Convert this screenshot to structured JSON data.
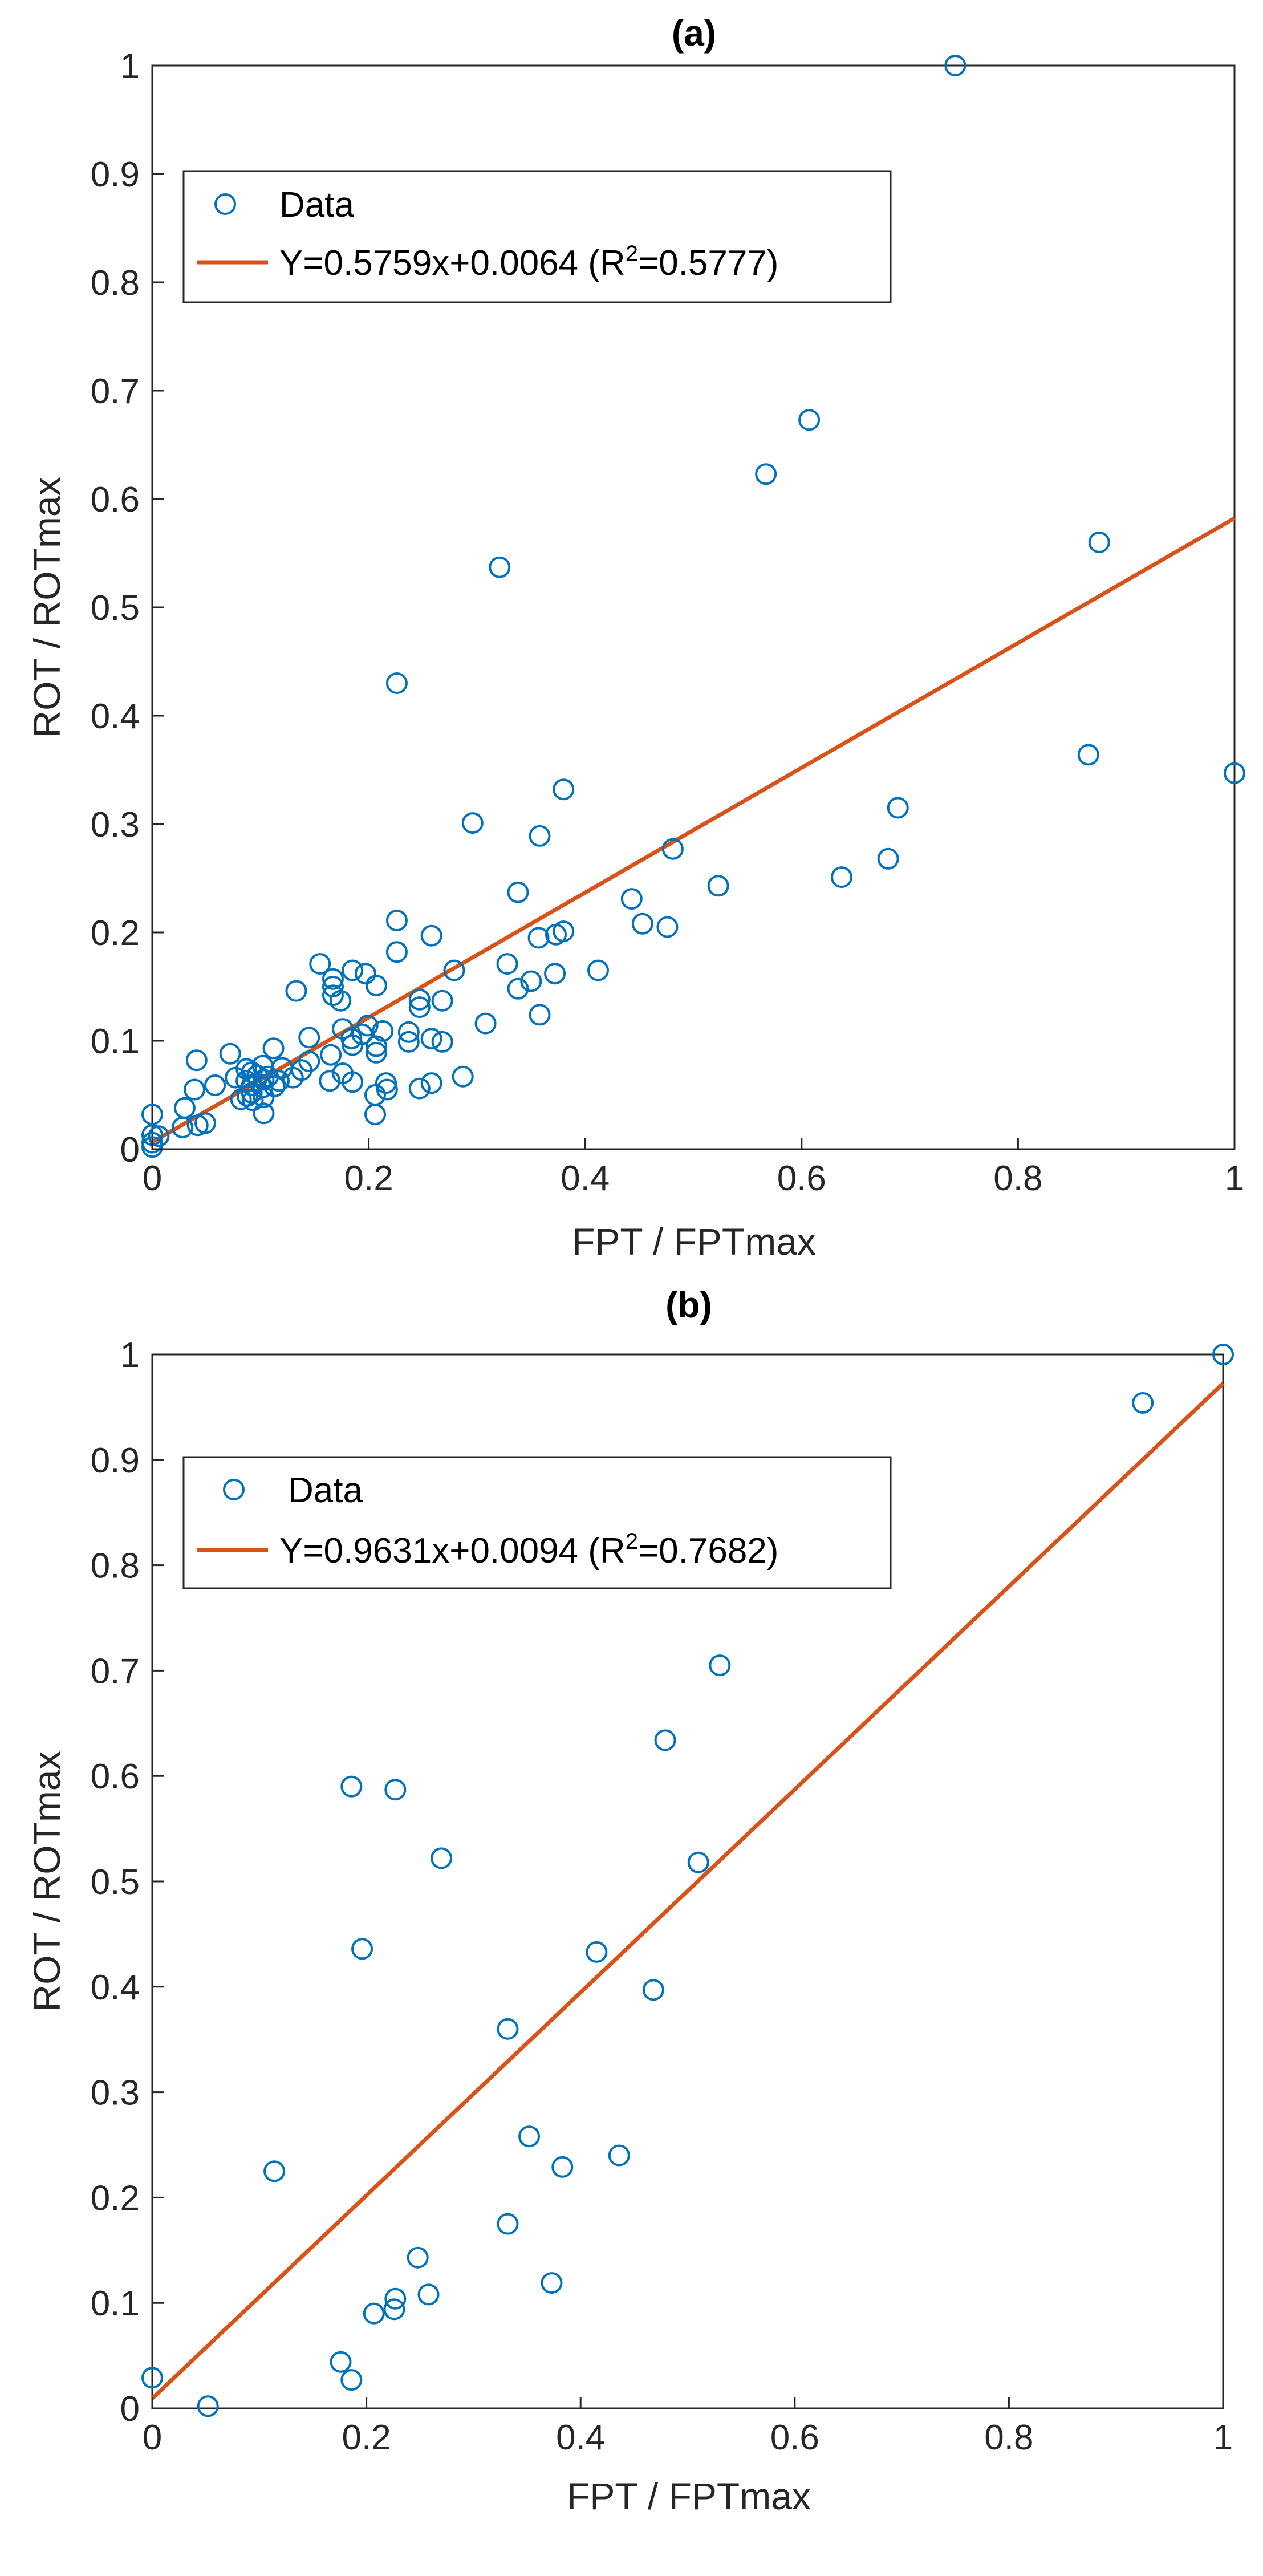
{
  "colors": {
    "marker": "#0072BD",
    "fit_line": "#D95319",
    "axis": "#262626",
    "background": "#FFFFFF"
  },
  "chart_data": [
    {
      "type": "scatter",
      "title": "(a)",
      "xlabel": "FPT / FPTmax",
      "ylabel": "ROT / ROTmax",
      "xlim": [
        0,
        1
      ],
      "ylim": [
        0,
        1
      ],
      "xticks": [
        0,
        0.2,
        0.4,
        0.6,
        0.8,
        1
      ],
      "yticks": [
        0,
        0.1,
        0.2,
        0.3,
        0.4,
        0.5,
        0.6,
        0.7,
        0.8,
        0.9,
        1
      ],
      "xtick_labels": [
        "0",
        "0.2",
        "0.4",
        "0.6",
        "0.8",
        "1"
      ],
      "ytick_labels": [
        "0",
        "0.1",
        "0.2",
        "0.3",
        "0.4",
        "0.5",
        "0.6",
        "0.7",
        "0.8",
        "0.9",
        "1"
      ],
      "grid": false,
      "legend": {
        "location": "top-left",
        "entries": [
          {
            "label": "Data",
            "kind": "marker"
          },
          {
            "label_main": "Y=0.5759x+0.0064 (R",
            "superscript": "2",
            "label_tail": "=0.5777)",
            "kind": "line"
          }
        ]
      },
      "fit": {
        "slope": 0.5759,
        "intercept": 0.0064,
        "r2": 0.5777
      },
      "series": [
        {
          "name": "Data",
          "points": [
            [
              0.742,
              1.0
            ],
            [
              0.607,
              0.673
            ],
            [
              0.567,
              0.623
            ],
            [
              0.875,
              0.56
            ],
            [
              0.321,
              0.537
            ],
            [
              0.226,
              0.43
            ],
            [
              0.865,
              0.364
            ],
            [
              1.0,
              0.347
            ],
            [
              0.38,
              0.332
            ],
            [
              0.689,
              0.315
            ],
            [
              0.296,
              0.301
            ],
            [
              0.358,
              0.289
            ],
            [
              0.481,
              0.277
            ],
            [
              0.68,
              0.268
            ],
            [
              0.637,
              0.251
            ],
            [
              0.523,
              0.243
            ],
            [
              0.338,
              0.237
            ],
            [
              0.443,
              0.231
            ],
            [
              0.226,
              0.211
            ],
            [
              0.453,
              0.208
            ],
            [
              0.476,
              0.205
            ],
            [
              0.38,
              0.201
            ],
            [
              0.373,
              0.198
            ],
            [
              0.258,
              0.197
            ],
            [
              0.357,
              0.195
            ],
            [
              0.226,
              0.182
            ],
            [
              0.155,
              0.171
            ],
            [
              0.328,
              0.171
            ],
            [
              0.412,
              0.165
            ],
            [
              0.279,
              0.165
            ],
            [
              0.185,
              0.165
            ],
            [
              0.197,
              0.162
            ],
            [
              0.372,
              0.162
            ],
            [
              0.167,
              0.157
            ],
            [
              0.35,
              0.155
            ],
            [
              0.207,
              0.151
            ],
            [
              0.167,
              0.15
            ],
            [
              0.338,
              0.148
            ],
            [
              0.133,
              0.146
            ],
            [
              0.167,
              0.142
            ],
            [
              0.174,
              0.137
            ],
            [
              0.268,
              0.137
            ],
            [
              0.247,
              0.138
            ],
            [
              0.247,
              0.131
            ],
            [
              0.358,
              0.124
            ],
            [
              0.308,
              0.116
            ],
            [
              0.199,
              0.114
            ],
            [
              0.176,
              0.111
            ],
            [
              0.213,
              0.109
            ],
            [
              0.237,
              0.108
            ],
            [
              0.194,
              0.106
            ],
            [
              0.184,
              0.102
            ],
            [
              0.145,
              0.103
            ],
            [
              0.258,
              0.102
            ],
            [
              0.237,
              0.099
            ],
            [
              0.268,
              0.099
            ],
            [
              0.185,
              0.096
            ],
            [
              0.207,
              0.095
            ],
            [
              0.112,
              0.093
            ],
            [
              0.207,
              0.089
            ],
            [
              0.072,
              0.088
            ],
            [
              0.165,
              0.087
            ],
            [
              0.041,
              0.082
            ],
            [
              0.145,
              0.081
            ],
            [
              0.102,
              0.077
            ],
            [
              0.12,
              0.075
            ],
            [
              0.087,
              0.074
            ],
            [
              0.138,
              0.073
            ],
            [
              0.092,
              0.071
            ],
            [
              0.176,
              0.07
            ],
            [
              0.097,
              0.068
            ],
            [
              0.107,
              0.067
            ],
            [
              0.287,
              0.067
            ],
            [
              0.077,
              0.066
            ],
            [
              0.13,
              0.066
            ],
            [
              0.103,
              0.064
            ],
            [
              0.117,
              0.063
            ],
            [
              0.087,
              0.063
            ],
            [
              0.164,
              0.063
            ],
            [
              0.185,
              0.062
            ],
            [
              0.216,
              0.061
            ],
            [
              0.258,
              0.061
            ],
            [
              0.058,
              0.059
            ],
            [
              0.092,
              0.059
            ],
            [
              0.113,
              0.058
            ],
            [
              0.102,
              0.057
            ],
            [
              0.247,
              0.056
            ],
            [
              0.039,
              0.055
            ],
            [
              0.217,
              0.055
            ],
            [
              0.092,
              0.052
            ],
            [
              0.088,
              0.049
            ],
            [
              0.103,
              0.048
            ],
            [
              0.206,
              0.05
            ],
            [
              0.082,
              0.046
            ],
            [
              0.093,
              0.045
            ],
            [
              0.03,
              0.038
            ],
            [
              0.103,
              0.033
            ],
            [
              0.206,
              0.032
            ],
            [
              0.0,
              0.032
            ],
            [
              0.049,
              0.024
            ],
            [
              0.042,
              0.022
            ],
            [
              0.028,
              0.02
            ],
            [
              0.0,
              0.013
            ],
            [
              0.006,
              0.012
            ],
            [
              0.0,
              0.006
            ],
            [
              0.0,
              0.002
            ]
          ]
        }
      ]
    },
    {
      "type": "scatter",
      "title": "(b)",
      "xlabel": "FPT / FPTmax",
      "ylabel": "ROT / ROTmax",
      "xlim": [
        0,
        1
      ],
      "ylim": [
        0,
        1
      ],
      "xticks": [
        0,
        0.2,
        0.4,
        0.6,
        0.8,
        1
      ],
      "yticks": [
        0,
        0.1,
        0.2,
        0.3,
        0.4,
        0.5,
        0.6,
        0.7,
        0.8,
        0.9,
        1
      ],
      "xtick_labels": [
        "0",
        "0.2",
        "0.4",
        "0.6",
        "0.8",
        "1"
      ],
      "ytick_labels": [
        "0",
        "0.1",
        "0.2",
        "0.3",
        "0.4",
        "0.5",
        "0.6",
        "0.7",
        "0.8",
        "0.9",
        "1"
      ],
      "grid": false,
      "legend": {
        "location": "top-left",
        "entries": [
          {
            "label": "Data",
            "kind": "marker"
          },
          {
            "label_main": "Y=0.9631x+0.0094 (R",
            "superscript": "2",
            "label_tail": "=0.7682)",
            "kind": "line"
          }
        ]
      },
      "fit": {
        "slope": 0.9631,
        "intercept": 0.0094,
        "r2": 0.7682
      },
      "series": [
        {
          "name": "Data",
          "points": [
            [
              1.0,
              1.0
            ],
            [
              0.925,
              0.954
            ],
            [
              0.53,
              0.705
            ],
            [
              0.479,
              0.634
            ],
            [
              0.186,
              0.59
            ],
            [
              0.227,
              0.587
            ],
            [
              0.27,
              0.522
            ],
            [
              0.51,
              0.518
            ],
            [
              0.196,
              0.436
            ],
            [
              0.415,
              0.433
            ],
            [
              0.468,
              0.397
            ],
            [
              0.332,
              0.36
            ],
            [
              0.352,
              0.258
            ],
            [
              0.436,
              0.24
            ],
            [
              0.383,
              0.229
            ],
            [
              0.114,
              0.225
            ],
            [
              0.332,
              0.175
            ],
            [
              0.248,
              0.143
            ],
            [
              0.373,
              0.119
            ],
            [
              0.258,
              0.108
            ],
            [
              0.227,
              0.104
            ],
            [
              0.226,
              0.094
            ],
            [
              0.207,
              0.09
            ],
            [
              0.176,
              0.044
            ],
            [
              0.186,
              0.027
            ],
            [
              0.0,
              0.029
            ],
            [
              0.052,
              0.002
            ]
          ]
        }
      ]
    }
  ]
}
